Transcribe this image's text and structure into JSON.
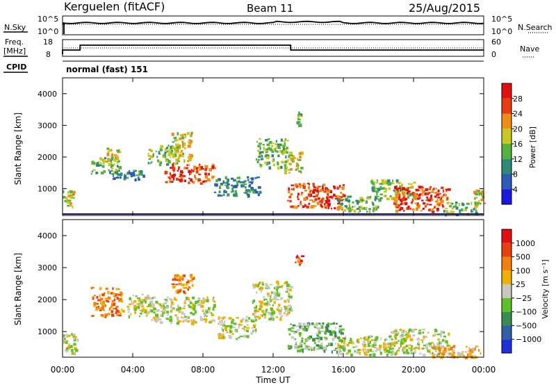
{
  "header": {
    "station": "Kerguelen (fitACF)",
    "beam": "Beam 11",
    "date": "25/Aug/2015"
  },
  "noise_panel": {
    "left_label": "N.Sky",
    "right_label": "N.Search",
    "left_ticks": [
      "10^5",
      "10^0"
    ],
    "right_ticks": [
      "10^5",
      "10^0"
    ]
  },
  "freq_panel": {
    "left_label_1": "Freq.",
    "left_label_2": "[MHz]",
    "left_ticks": [
      "18",
      "8"
    ],
    "right_label": "Nave",
    "right_ticks": [
      "60",
      "0"
    ],
    "cpid_label": "CPID",
    "mode_text": "normal (fast) 151"
  },
  "chart_data": [
    {
      "type": "heatmap",
      "name": "power",
      "ylabel": "Slant Range [km]",
      "ylim": [
        200,
        4500
      ],
      "yticks": [
        "1000",
        "2000",
        "3000",
        "4000"
      ],
      "xlim_hours": [
        0,
        24
      ],
      "colorbar": {
        "label": "Power [dB]",
        "tick_labels": [
          "4",
          "8",
          "12",
          "16",
          "20",
          "24",
          "28"
        ],
        "colors": [
          "#1818e0",
          "#2a5cb8",
          "#2f8a74",
          "#55b040",
          "#c8c81e",
          "#f08c14",
          "#e83c10",
          "#e01010"
        ]
      },
      "echo_regions": [
        {
          "t0": 0.0,
          "t1": 0.6,
          "r0": 400,
          "r1": 1000,
          "level": 4
        },
        {
          "t0": 1.6,
          "t1": 3.2,
          "r0": 1500,
          "r1": 2000,
          "level": 3
        },
        {
          "t0": 2.5,
          "t1": 3.2,
          "r0": 1900,
          "r1": 2300,
          "level": 4
        },
        {
          "t0": 2.6,
          "t1": 4.6,
          "r0": 1300,
          "r1": 1600,
          "level": 2
        },
        {
          "t0": 4.8,
          "t1": 6.6,
          "r0": 1800,
          "r1": 2400,
          "level": 3
        },
        {
          "t0": 6.2,
          "t1": 7.3,
          "r0": 1900,
          "r1": 2800,
          "level": 4
        },
        {
          "t0": 5.8,
          "t1": 8.6,
          "r0": 1200,
          "r1": 1800,
          "level": 6
        },
        {
          "t0": 8.6,
          "t1": 11.2,
          "r0": 800,
          "r1": 1400,
          "level": 2
        },
        {
          "t0": 11.0,
          "t1": 12.8,
          "r0": 1700,
          "r1": 2600,
          "level": 3
        },
        {
          "t0": 12.6,
          "t1": 13.6,
          "r0": 1500,
          "r1": 2200,
          "level": 4
        },
        {
          "t0": 13.3,
          "t1": 13.6,
          "r0": 3000,
          "r1": 3500,
          "level": 3
        },
        {
          "t0": 12.8,
          "t1": 16.0,
          "r0": 400,
          "r1": 1200,
          "level": 6
        },
        {
          "t0": 15.6,
          "t1": 18.0,
          "r0": 300,
          "r1": 800,
          "level": 3
        },
        {
          "t0": 17.5,
          "t1": 20.0,
          "r0": 700,
          "r1": 1300,
          "level": 3
        },
        {
          "t0": 18.8,
          "t1": 22.0,
          "r0": 300,
          "r1": 1100,
          "level": 6
        },
        {
          "t0": 21.6,
          "t1": 23.6,
          "r0": 200,
          "r1": 600,
          "level": 3
        },
        {
          "t0": 23.4,
          "t1": 24.0,
          "r0": 500,
          "r1": 1000,
          "level": 4
        }
      ]
    },
    {
      "type": "heatmap",
      "name": "velocity",
      "ylabel": "Slant Range [km]",
      "ylim": [
        200,
        4500
      ],
      "yticks": [
        "1000",
        "2000",
        "3000",
        "4000"
      ],
      "xlabel": "Time UT",
      "xticks": [
        "00:00",
        "04:00",
        "08:00",
        "12:00",
        "16:00",
        "20:00",
        "00:00"
      ],
      "colorbar": {
        "label": "Velocity [m s⁻¹]",
        "tick_labels": [
          "1000",
          "500",
          "100",
          "25",
          "−25",
          "−100",
          "−500",
          "−1000"
        ],
        "colors": [
          "#2030d8",
          "#3060a8",
          "#3a8c50",
          "#60c028",
          "#c8c8c0",
          "#f0b000",
          "#f08010",
          "#e84010",
          "#e01010"
        ]
      },
      "echo_regions": [
        {
          "t0": 0.0,
          "t1": 0.8,
          "r0": 300,
          "r1": 1000,
          "level": 4
        },
        {
          "t0": 1.6,
          "t1": 3.4,
          "r0": 1500,
          "r1": 2400,
          "level": 6
        },
        {
          "t0": 3.6,
          "t1": 5.0,
          "r0": 1500,
          "r1": 2200,
          "level": 4
        },
        {
          "t0": 5.0,
          "t1": 8.6,
          "r0": 1300,
          "r1": 2100,
          "level": 4
        },
        {
          "t0": 6.2,
          "t1": 7.4,
          "r0": 2200,
          "r1": 2800,
          "level": 6
        },
        {
          "t0": 8.8,
          "t1": 11.0,
          "r0": 800,
          "r1": 1500,
          "level": 4
        },
        {
          "t0": 10.8,
          "t1": 13.0,
          "r0": 1400,
          "r1": 2600,
          "level": 4
        },
        {
          "t0": 13.2,
          "t1": 13.6,
          "r0": 3100,
          "r1": 3400,
          "level": 7
        },
        {
          "t0": 12.8,
          "t1": 16.0,
          "r0": 400,
          "r1": 1300,
          "level": 3
        },
        {
          "t0": 15.6,
          "t1": 19.0,
          "r0": 300,
          "r1": 900,
          "level": 4
        },
        {
          "t0": 18.5,
          "t1": 22.0,
          "r0": 300,
          "r1": 1100,
          "level": 4
        },
        {
          "t0": 21.0,
          "t1": 23.8,
          "r0": 200,
          "r1": 600,
          "level": 5
        }
      ]
    }
  ]
}
